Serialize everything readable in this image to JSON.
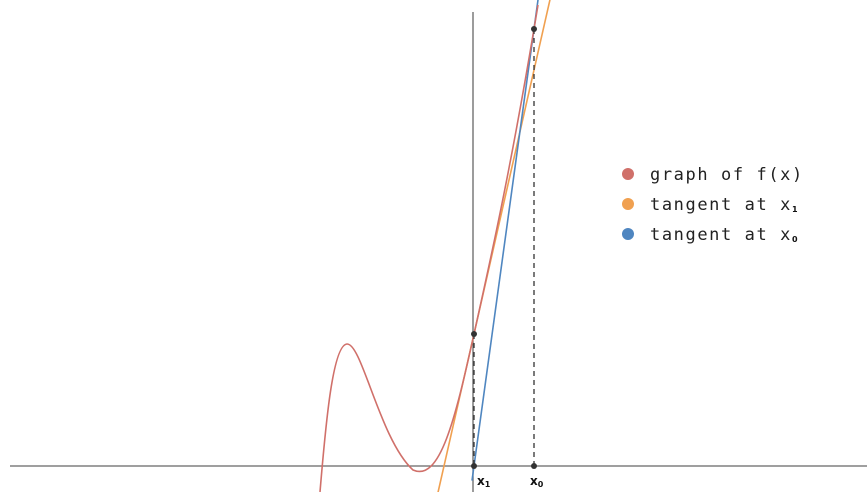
{
  "colors": {
    "background": "#ffffff",
    "axis": "#666666",
    "curve": "#d0706a",
    "tangent_x1": "#f0a050",
    "tangent_x0": "#4f86c0",
    "guide": "#333333",
    "point": "#333333"
  },
  "legend": {
    "items": [
      {
        "label": "graph of f(x)",
        "sub": "",
        "color": "#d0706a"
      },
      {
        "label": "tangent at x",
        "sub": "1",
        "color": "#f0a050"
      },
      {
        "label": "tangent at x",
        "sub": "0",
        "color": "#4f86c0"
      }
    ]
  },
  "ticks": [
    {
      "label": "x",
      "sub": "1"
    },
    {
      "label": "x",
      "sub": "0"
    }
  ]
}
